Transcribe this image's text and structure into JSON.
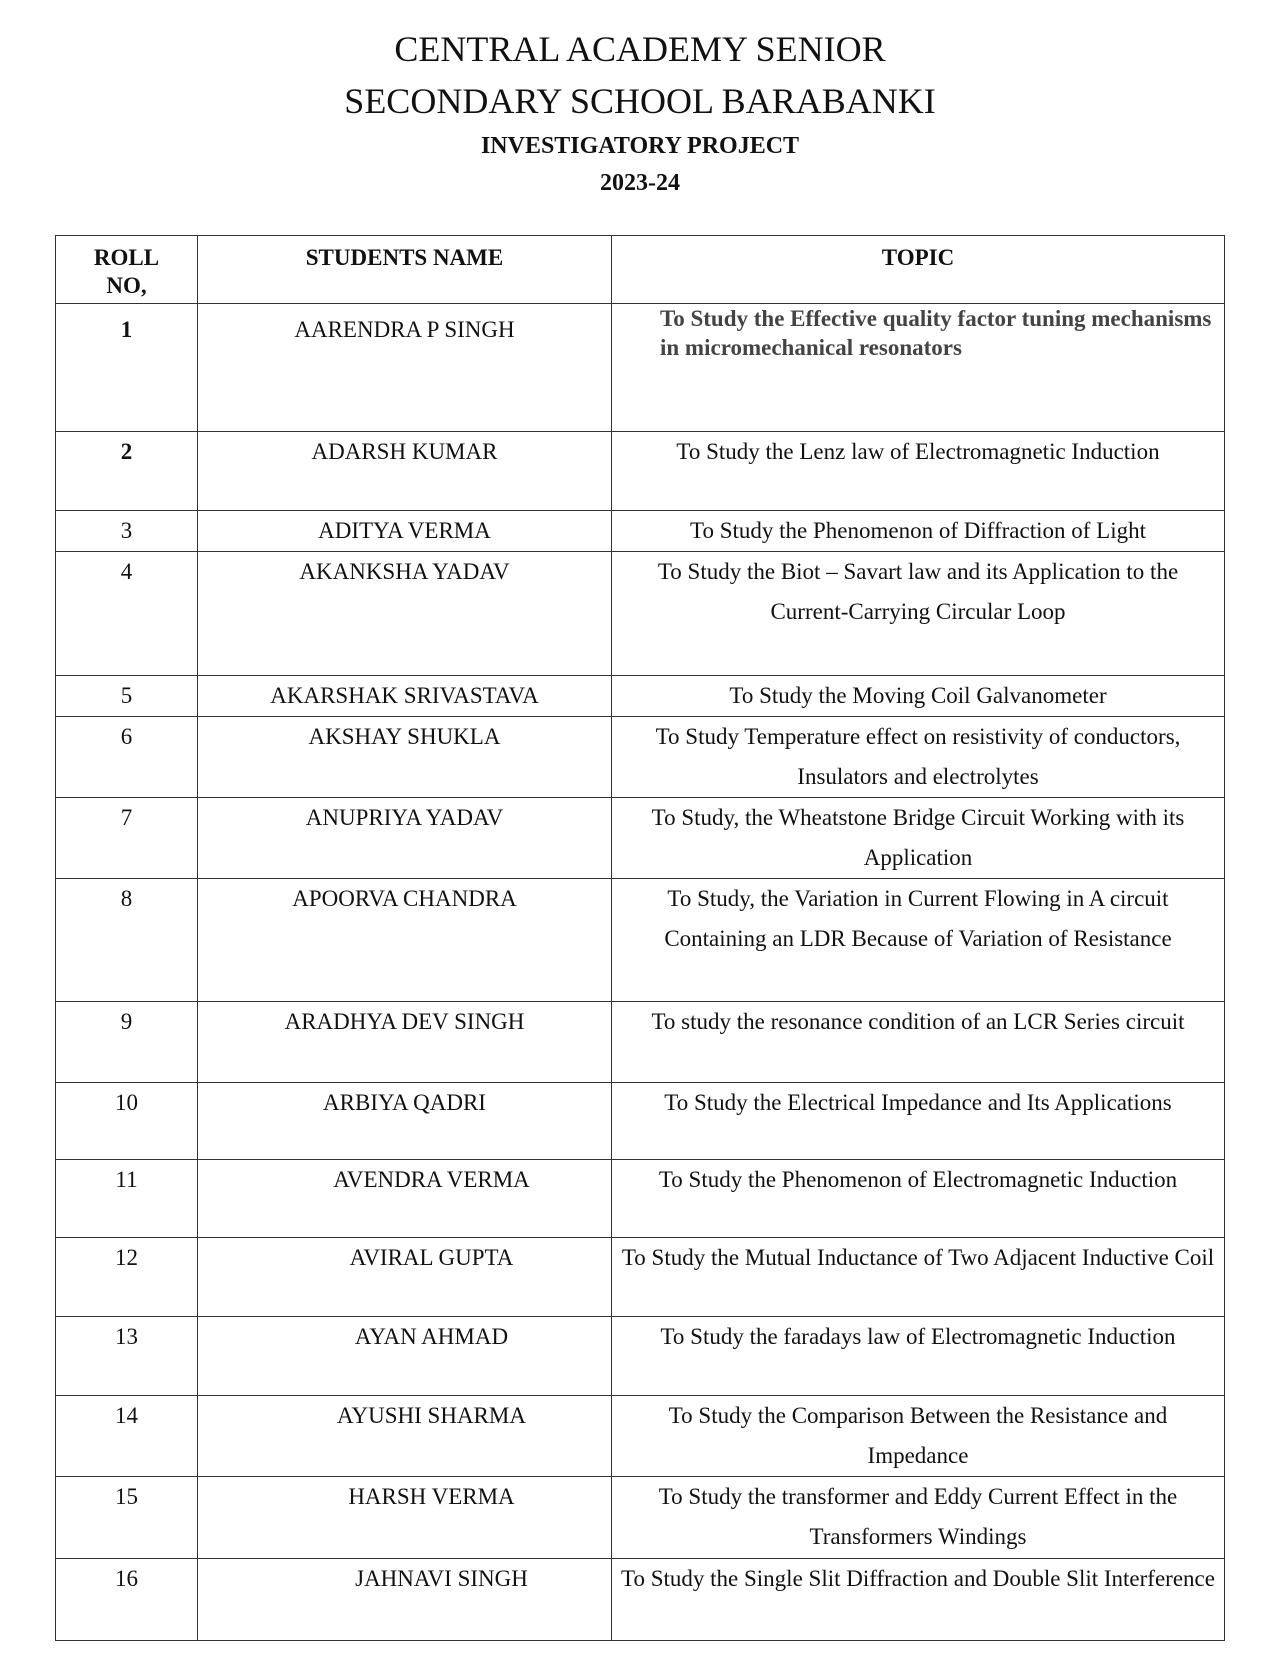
{
  "header": {
    "line1": "CENTRAL ACADEMY SENIOR",
    "line2": "SECONDARY SCHOOL BARABANKI",
    "subtitle": "INVESTIGATORY PROJECT",
    "year": "2023-24"
  },
  "table": {
    "columns": [
      "ROLL NO,",
      "STUDENTS NAME",
      "TOPIC"
    ],
    "rows": [
      {
        "roll": "1",
        "name": "AARENDRA P SINGH",
        "topic": "To Study the Effective quality factor tuning mechanisms in micromechanical resonators"
      },
      {
        "roll": "2",
        "name": "ADARSH KUMAR",
        "topic": "To Study the Lenz law of Electromagnetic Induction"
      },
      {
        "roll": "3",
        "name": "ADITYA VERMA",
        "topic": "To Study the Phenomenon of Diffraction of Light"
      },
      {
        "roll": "4",
        "name": "AKANKSHA YADAV",
        "topic": "To Study the Biot – Savart law and its Application to the Current-Carrying Circular Loop"
      },
      {
        "roll": "5",
        "name": "AKARSHAK SRIVASTAVA",
        "topic": "To Study the Moving Coil Galvanometer"
      },
      {
        "roll": "6",
        "name": "AKSHAY SHUKLA",
        "topic": "To Study Temperature effect on resistivity of conductors, Insulators and electrolytes"
      },
      {
        "roll": "7",
        "name": "ANUPRIYA YADAV",
        "topic": "To Study, the Wheatstone Bridge Circuit Working with its Application"
      },
      {
        "roll": "8",
        "name": "APOORVA CHANDRA",
        "topic": "To Study, the Variation in Current Flowing in A circuit Containing an LDR Because of Variation of Resistance"
      },
      {
        "roll": "9",
        "name": "ARADHYA DEV SINGH",
        "topic": "To study the resonance condition of an LCR Series circuit"
      },
      {
        "roll": "10",
        "name": "ARBIYA QADRI",
        "topic": "To Study the Electrical Impedance and Its Applications"
      },
      {
        "roll": "11",
        "name": "AVENDRA VERMA",
        "topic": "To Study the Phenomenon of Electromagnetic Induction"
      },
      {
        "roll": "12",
        "name": "AVIRAL GUPTA",
        "topic": "To Study the Mutual Inductance of Two Adjacent Inductive Coil"
      },
      {
        "roll": "13",
        "name": "AYAN AHMAD",
        "topic": "To Study the faradays law of Electromagnetic Induction"
      },
      {
        "roll": "14",
        "name": "AYUSHI SHARMA",
        "topic": "To Study the Comparison Between the Resistance and Impedance"
      },
      {
        "roll": "15",
        "name": "HARSH VERMA",
        "topic": "To Study the transformer and Eddy Current Effect in the Transformers Windings"
      },
      {
        "roll": "16",
        "name": "JAHNAVI SINGH",
        "topic": "To Study the Single Slit Diffraction and Double Slit Interference"
      }
    ]
  }
}
